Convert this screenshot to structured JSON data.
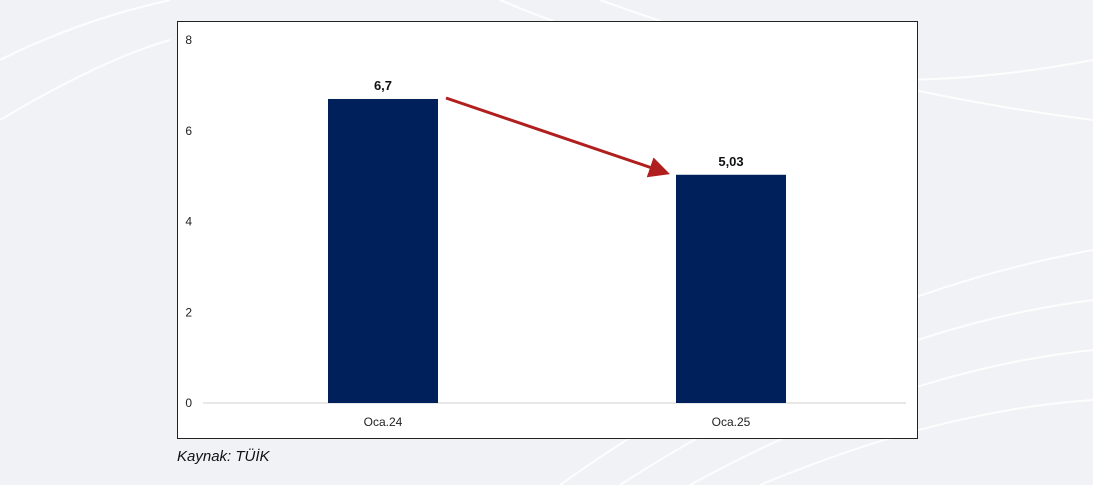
{
  "chart_data": {
    "type": "bar",
    "categories": [
      "Oca.24",
      "Oca.25"
    ],
    "values": [
      6.7,
      5.03
    ],
    "data_labels": [
      "6,7",
      "5,03"
    ],
    "yticks": [
      0,
      2,
      4,
      6,
      8
    ],
    "ylim": [
      0,
      8
    ],
    "title": "",
    "xlabel": "",
    "ylabel": "",
    "grid": false,
    "bar_color": "#00205b",
    "arrow_color": "#b01e1e",
    "annotations": [
      "arrow-from-first-bar-to-second-bar"
    ]
  },
  "source": {
    "text": "Kaynak: TÜİK"
  }
}
